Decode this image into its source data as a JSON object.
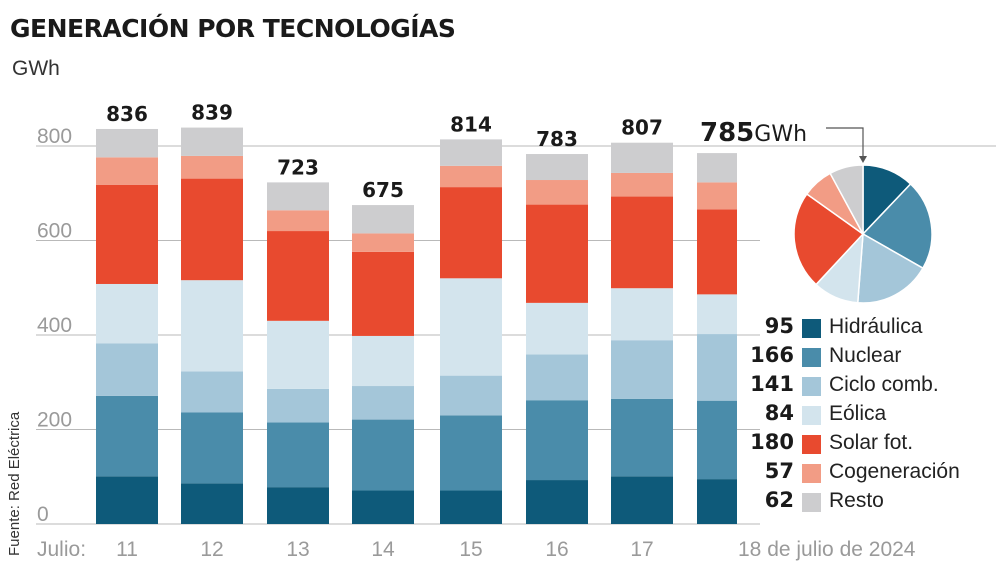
{
  "title": "GENERACIÓN POR TECNOLOGÍAS",
  "unit": "GWh",
  "source": "Fuente: Red Eléctrica",
  "x_prefix": "Julio:",
  "colors": {
    "Hidráulica": "#0e5a7a",
    "Nuclear": "#4a8caa",
    "Ciclo comb.": "#a4c6d9",
    "Eólica": "#d3e4ed",
    "Solar fot.": "#e84a2f",
    "Cogeneración": "#f29c85",
    "Resto": "#cdcdcf"
  },
  "chart_data": [
    {
      "type": "bar",
      "stacked": true,
      "title": "GENERACIÓN POR TECNOLOGÍAS",
      "ylabel": "GWh",
      "xlabel": "Julio",
      "ylim": [
        0,
        800
      ],
      "yticks": [
        0,
        200,
        400,
        600,
        800
      ],
      "grid": true,
      "categories": [
        "11",
        "12",
        "13",
        "14",
        "15",
        "16",
        "17",
        "18 de julio de 2024"
      ],
      "totals": [
        836,
        839,
        723,
        675,
        814,
        783,
        807,
        785
      ],
      "total_unit": "GWh",
      "series": [
        {
          "name": "Hidráulica",
          "values": [
            101,
            86,
            78,
            71,
            71,
            93,
            101,
            95
          ]
        },
        {
          "name": "Nuclear",
          "values": [
            170,
            150,
            137,
            150,
            159,
            169,
            164,
            166
          ]
        },
        {
          "name": "Ciclo comb.",
          "values": [
            111,
            87,
            71,
            71,
            84,
            97,
            124,
            141
          ]
        },
        {
          "name": "Eólica",
          "values": [
            126,
            193,
            144,
            106,
            206,
            109,
            110,
            84
          ]
        },
        {
          "name": "Solar fot.",
          "values": [
            210,
            215,
            190,
            178,
            193,
            208,
            194,
            180
          ]
        },
        {
          "name": "Cogeneración",
          "values": [
            58,
            48,
            44,
            39,
            45,
            52,
            50,
            57
          ]
        },
        {
          "name": "Resto",
          "values": [
            60,
            60,
            59,
            60,
            56,
            55,
            64,
            62
          ]
        }
      ]
    },
    {
      "type": "pie",
      "title": "785GWh",
      "categories": [
        "Hidráulica",
        "Nuclear",
        "Ciclo comb.",
        "Eólica",
        "Solar fot.",
        "Cogeneración",
        "Resto"
      ],
      "values": [
        95,
        166,
        141,
        84,
        180,
        57,
        62
      ],
      "total": 785,
      "unit": "GWh"
    }
  ]
}
